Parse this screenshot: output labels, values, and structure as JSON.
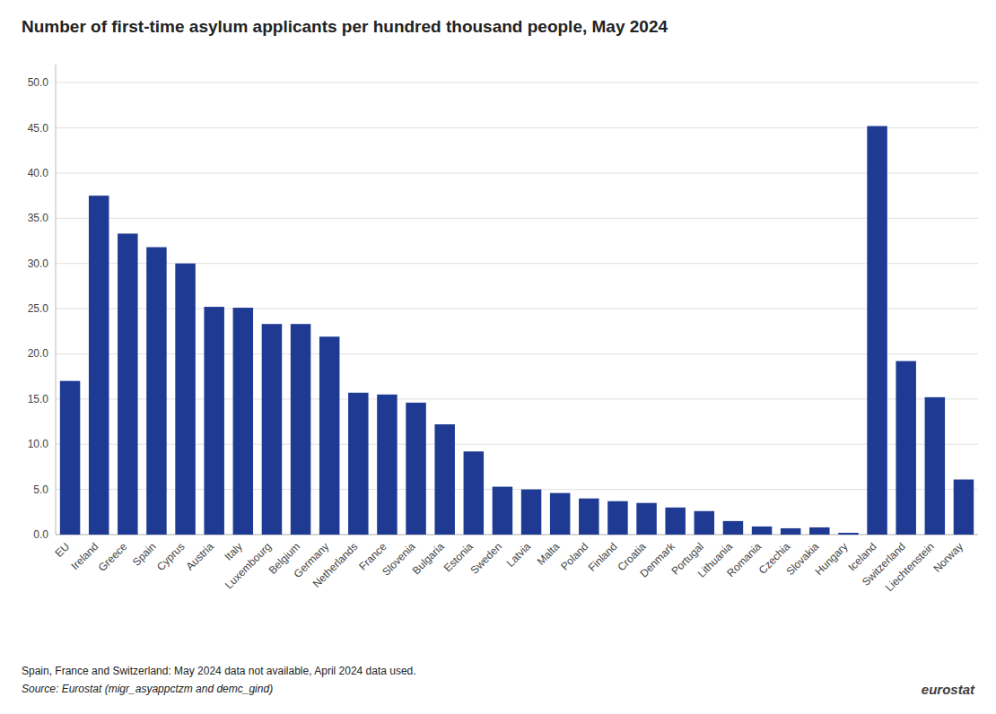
{
  "chart_data": {
    "type": "bar",
    "title": "Number of first-time asylum applicants per hundred thousand people, May 2024",
    "categories": [
      "EU",
      "Ireland",
      "Greece",
      "Spain",
      "Cyprus",
      "Austria",
      "Italy",
      "Luxembourg",
      "Belgium",
      "Germany",
      "Netherlands",
      "France",
      "Slovenia",
      "Bulgaria",
      "Estonia",
      "Sweden",
      "Latvia",
      "Malta",
      "Poland",
      "Finland",
      "Croatia",
      "Denmark",
      "Portugal",
      "Lithuania",
      "Romania",
      "Czechia",
      "Slovakia",
      "Hungary",
      "Iceland",
      "Switzerland",
      "Liechtenstein",
      "Norway"
    ],
    "values": [
      17.0,
      37.5,
      33.3,
      31.8,
      30.0,
      25.2,
      25.1,
      23.3,
      23.3,
      21.9,
      15.7,
      15.5,
      14.6,
      12.2,
      9.2,
      5.3,
      5.0,
      4.6,
      4.0,
      3.7,
      3.5,
      3.0,
      2.6,
      1.5,
      0.9,
      0.7,
      0.8,
      0.2,
      45.2,
      19.2,
      15.2,
      6.1
    ],
    "color": "#1f3a93",
    "ylim": [
      0,
      52
    ],
    "yticks": [
      {
        "value": 0.0,
        "label": "0.0"
      },
      {
        "value": 5.0,
        "label": "5.0"
      },
      {
        "value": 10.0,
        "label": "10.0"
      },
      {
        "value": 15.0,
        "label": "15.0"
      },
      {
        "value": 20.0,
        "label": "20.0"
      },
      {
        "value": 25.0,
        "label": "25.0"
      },
      {
        "value": 30.0,
        "label": "30.0"
      },
      {
        "value": 35.0,
        "label": "35.0"
      },
      {
        "value": 40.0,
        "label": "40.0"
      },
      {
        "value": 45.0,
        "label": "45.0"
      },
      {
        "value": 50.0,
        "label": "50.0"
      }
    ],
    "grid": true,
    "annotations": [
      "Spain, France and Switzerland: May 2024 data not available, April 2024 data used.",
      "Source: Eurostat (migr_asyappctzm and demc_gind)",
      "eurostat"
    ]
  }
}
